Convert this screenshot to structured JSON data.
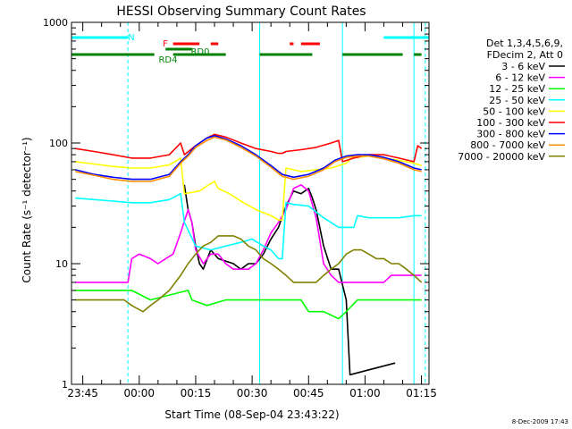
{
  "chart_data": {
    "type": "line",
    "title": "HESSI Observing Summary Count Rates",
    "xlabel": "Start Time (08-Sep-04 23:43:22)",
    "ylabel": "Count Rate (s⁻¹ detector⁻¹)",
    "yscale": "log",
    "ylim": [
      1,
      1000
    ],
    "xlim_minutes": [
      -1,
      94
    ],
    "x_tick_labels": [
      {
        "label": "23:45",
        "minute": 2
      },
      {
        "label": "00:00",
        "minute": 17
      },
      {
        "label": "00:15",
        "minute": 32
      },
      {
        "label": "00:30",
        "minute": 47
      },
      {
        "label": "00:45",
        "minute": 62
      },
      {
        "label": "01:00",
        "minute": 77
      },
      {
        "label": "01:15",
        "minute": 92
      }
    ],
    "y_tick_labels": [
      {
        "label": "1",
        "value": 1
      },
      {
        "label": "10",
        "value": 10
      },
      {
        "label": "100",
        "value": 100
      },
      {
        "label": "1000",
        "value": 1000
      }
    ],
    "legend_header": [
      "Det 1,3,4,5,6,9,",
      "FDecim 2, Att 0"
    ],
    "series": [
      {
        "name": "3 - 6 keV",
        "color": "#000000",
        "points": [
          [
            29,
            45
          ],
          [
            30,
            28
          ],
          [
            31,
            22
          ],
          [
            32,
            14
          ],
          [
            33,
            10
          ],
          [
            34,
            9
          ],
          [
            36,
            13
          ],
          [
            38,
            11
          ],
          [
            42,
            10
          ],
          [
            44,
            9
          ],
          [
            46,
            10
          ],
          [
            48,
            10
          ],
          [
            50,
            12
          ],
          [
            52,
            16
          ],
          [
            54,
            20
          ],
          [
            56,
            30
          ],
          [
            58,
            40
          ],
          [
            60,
            38
          ],
          [
            62,
            42
          ],
          [
            63,
            35
          ],
          [
            64,
            28
          ],
          [
            66,
            14
          ],
          [
            68,
            9
          ],
          [
            70,
            9
          ],
          [
            72,
            5
          ],
          [
            73,
            1.2
          ],
          [
            85,
            1.5
          ]
        ]
      },
      {
        "name": "6 - 12 keV",
        "color": "#ff00ff",
        "points": [
          [
            0,
            7
          ],
          [
            5,
            7
          ],
          [
            10,
            7
          ],
          [
            14,
            7
          ],
          [
            15,
            11
          ],
          [
            17,
            12
          ],
          [
            20,
            11
          ],
          [
            22,
            10
          ],
          [
            24,
            11
          ],
          [
            26,
            12
          ],
          [
            28,
            18
          ],
          [
            30,
            28
          ],
          [
            31,
            22
          ],
          [
            32,
            13
          ],
          [
            34,
            10
          ],
          [
            36,
            12
          ],
          [
            38,
            12
          ],
          [
            40,
            10
          ],
          [
            42,
            9
          ],
          [
            44,
            9
          ],
          [
            46,
            9
          ],
          [
            48,
            10
          ],
          [
            50,
            13
          ],
          [
            52,
            18
          ],
          [
            54,
            22
          ],
          [
            56,
            28
          ],
          [
            58,
            42
          ],
          [
            60,
            45
          ],
          [
            62,
            40
          ],
          [
            64,
            24
          ],
          [
            66,
            10
          ],
          [
            68,
            8
          ],
          [
            70,
            7
          ],
          [
            72,
            7
          ],
          [
            74,
            7
          ],
          [
            76,
            7
          ],
          [
            78,
            7
          ],
          [
            80,
            7
          ],
          [
            82,
            7
          ],
          [
            84,
            8
          ],
          [
            86,
            8
          ],
          [
            88,
            8
          ],
          [
            90,
            8
          ],
          [
            92,
            8
          ]
        ]
      },
      {
        "name": "12 - 25 keV",
        "color": "#00ff00",
        "points": [
          [
            0,
            6
          ],
          [
            5,
            6
          ],
          [
            10,
            6
          ],
          [
            14,
            6
          ],
          [
            15,
            6
          ],
          [
            20,
            5
          ],
          [
            25,
            5.5
          ],
          [
            30,
            6
          ],
          [
            31,
            5
          ],
          [
            35,
            4.5
          ],
          [
            40,
            5
          ],
          [
            45,
            5
          ],
          [
            50,
            5
          ],
          [
            55,
            5
          ],
          [
            60,
            5
          ],
          [
            62,
            4
          ],
          [
            66,
            4
          ],
          [
            70,
            3.5
          ],
          [
            72,
            4
          ],
          [
            75,
            5
          ],
          [
            80,
            5
          ],
          [
            85,
            5
          ],
          [
            90,
            5
          ],
          [
            92,
            5
          ]
        ]
      },
      {
        "name": "25 - 50 keV",
        "color": "#00ffff",
        "points": [
          [
            0,
            35
          ],
          [
            5,
            34
          ],
          [
            10,
            33
          ],
          [
            15,
            32
          ],
          [
            20,
            32
          ],
          [
            25,
            34
          ],
          [
            28,
            38
          ],
          [
            29,
            22
          ],
          [
            32,
            14
          ],
          [
            36,
            13
          ],
          [
            40,
            14
          ],
          [
            44,
            15
          ],
          [
            47,
            16
          ],
          [
            50,
            14
          ],
          [
            52,
            13
          ],
          [
            54,
            11
          ],
          [
            55,
            11
          ],
          [
            56,
            32
          ],
          [
            58,
            31
          ],
          [
            62,
            30
          ],
          [
            66,
            24
          ],
          [
            70,
            20
          ],
          [
            74,
            20
          ],
          [
            75,
            25
          ],
          [
            78,
            24
          ],
          [
            82,
            24
          ],
          [
            86,
            24
          ],
          [
            90,
            25
          ],
          [
            92,
            25
          ]
        ]
      },
      {
        "name": "50 - 100 keV",
        "color": "#ffff00",
        "points": [
          [
            0,
            70
          ],
          [
            5,
            67
          ],
          [
            10,
            64
          ],
          [
            15,
            62
          ],
          [
            20,
            62
          ],
          [
            25,
            66
          ],
          [
            28,
            75
          ],
          [
            29,
            38
          ],
          [
            33,
            40
          ],
          [
            35,
            44
          ],
          [
            37,
            48
          ],
          [
            38,
            42
          ],
          [
            41,
            38
          ],
          [
            44,
            33
          ],
          [
            48,
            28
          ],
          [
            52,
            25
          ],
          [
            54,
            23
          ],
          [
            55,
            23
          ],
          [
            56,
            62
          ],
          [
            60,
            58
          ],
          [
            64,
            60
          ],
          [
            68,
            62
          ],
          [
            72,
            68
          ],
          [
            74,
            78
          ],
          [
            75,
            76
          ],
          [
            78,
            78
          ],
          [
            82,
            75
          ],
          [
            86,
            72
          ],
          [
            90,
            68
          ],
          [
            92,
            65
          ]
        ]
      },
      {
        "name": "100 - 300 keV",
        "color": "#ff0000",
        "points": [
          [
            0,
            90
          ],
          [
            5,
            85
          ],
          [
            10,
            80
          ],
          [
            15,
            75
          ],
          [
            20,
            75
          ],
          [
            25,
            80
          ],
          [
            28,
            100
          ],
          [
            29,
            80
          ],
          [
            32,
            95
          ],
          [
            35,
            110
          ],
          [
            37,
            118
          ],
          [
            40,
            112
          ],
          [
            44,
            100
          ],
          [
            48,
            90
          ],
          [
            52,
            85
          ],
          [
            54,
            82
          ],
          [
            55,
            82
          ],
          [
            56,
            85
          ],
          [
            60,
            88
          ],
          [
            64,
            92
          ],
          [
            68,
            100
          ],
          [
            70,
            105
          ],
          [
            71,
            70
          ],
          [
            74,
            75
          ],
          [
            78,
            80
          ],
          [
            82,
            80
          ],
          [
            86,
            75
          ],
          [
            90,
            70
          ],
          [
            91,
            95
          ],
          [
            92,
            90
          ]
        ]
      },
      {
        "name": "300 - 800 keV",
        "color": "#0000ff",
        "points": [
          [
            0,
            60
          ],
          [
            5,
            55
          ],
          [
            10,
            52
          ],
          [
            15,
            50
          ],
          [
            20,
            50
          ],
          [
            25,
            55
          ],
          [
            28,
            70
          ],
          [
            30,
            80
          ],
          [
            32,
            95
          ],
          [
            35,
            110
          ],
          [
            37,
            115
          ],
          [
            40,
            108
          ],
          [
            44,
            95
          ],
          [
            48,
            80
          ],
          [
            52,
            65
          ],
          [
            55,
            55
          ],
          [
            58,
            52
          ],
          [
            62,
            55
          ],
          [
            66,
            62
          ],
          [
            69,
            72
          ],
          [
            72,
            78
          ],
          [
            75,
            80
          ],
          [
            78,
            80
          ],
          [
            82,
            76
          ],
          [
            86,
            70
          ],
          [
            90,
            62
          ],
          [
            92,
            60
          ]
        ]
      },
      {
        "name": "800 - 7000 keV",
        "color": "#ff8c00",
        "points": [
          [
            0,
            58
          ],
          [
            5,
            54
          ],
          [
            10,
            50
          ],
          [
            15,
            48
          ],
          [
            20,
            48
          ],
          [
            25,
            53
          ],
          [
            28,
            68
          ],
          [
            30,
            78
          ],
          [
            32,
            92
          ],
          [
            35,
            105
          ],
          [
            37,
            112
          ],
          [
            40,
            106
          ],
          [
            44,
            92
          ],
          [
            48,
            78
          ],
          [
            52,
            63
          ],
          [
            55,
            53
          ],
          [
            58,
            50
          ],
          [
            62,
            53
          ],
          [
            66,
            60
          ],
          [
            69,
            70
          ],
          [
            72,
            76
          ],
          [
            75,
            78
          ],
          [
            78,
            78
          ],
          [
            82,
            74
          ],
          [
            86,
            68
          ],
          [
            90,
            60
          ],
          [
            92,
            58
          ]
        ]
      },
      {
        "name": "7000 - 20000 keV",
        "color": "#808000",
        "points": [
          [
            0,
            5
          ],
          [
            5,
            5
          ],
          [
            10,
            5
          ],
          [
            13,
            5
          ],
          [
            15,
            4.5
          ],
          [
            18,
            4
          ],
          [
            20,
            4.5
          ],
          [
            22,
            5
          ],
          [
            25,
            6
          ],
          [
            28,
            8
          ],
          [
            30,
            10
          ],
          [
            32,
            12
          ],
          [
            34,
            14
          ],
          [
            36,
            15
          ],
          [
            38,
            17
          ],
          [
            40,
            17
          ],
          [
            42,
            17
          ],
          [
            44,
            16
          ],
          [
            46,
            14
          ],
          [
            48,
            13
          ],
          [
            50,
            11
          ],
          [
            52,
            10
          ],
          [
            54,
            9
          ],
          [
            56,
            8
          ],
          [
            58,
            7
          ],
          [
            60,
            7
          ],
          [
            62,
            7
          ],
          [
            64,
            7
          ],
          [
            66,
            8
          ],
          [
            68,
            9
          ],
          [
            70,
            10
          ],
          [
            72,
            12
          ],
          [
            74,
            13
          ],
          [
            76,
            13
          ],
          [
            78,
            12
          ],
          [
            80,
            11
          ],
          [
            82,
            11
          ],
          [
            84,
            10
          ],
          [
            86,
            10
          ],
          [
            88,
            9
          ],
          [
            90,
            8
          ],
          [
            92,
            7
          ]
        ]
      }
    ],
    "bars": [
      {
        "label": "N",
        "color": "#00ffff",
        "segments": [
          [
            -1,
            14
          ],
          [
            82,
            94
          ]
        ]
      },
      {
        "label": "F",
        "color": "#ff0000",
        "segments": [
          [
            26,
            33
          ],
          [
            36,
            38
          ],
          [
            57,
            58
          ],
          [
            60,
            65
          ]
        ]
      },
      {
        "label": "RD0",
        "color": "#008000",
        "segments": [
          [
            24,
            31
          ]
        ]
      },
      {
        "label": "RD4",
        "color": "#008000",
        "segments": [
          [
            -1,
            21
          ],
          [
            26,
            40
          ],
          [
            49,
            63
          ],
          [
            71,
            87
          ],
          [
            90,
            92
          ]
        ]
      }
    ],
    "vertical_markers": [
      {
        "minute": 14,
        "style": "dashed",
        "color": "#00ffff"
      },
      {
        "minute": 49,
        "style": "solid",
        "color": "#00ffff"
      },
      {
        "minute": 71,
        "style": "solid",
        "color": "#00ffff"
      },
      {
        "minute": 90,
        "style": "solid",
        "color": "#00ffff"
      },
      {
        "minute": 93,
        "style": "dashed",
        "color": "#00ffff"
      }
    ]
  },
  "footer_date": "8-Dec-2009 17:43"
}
